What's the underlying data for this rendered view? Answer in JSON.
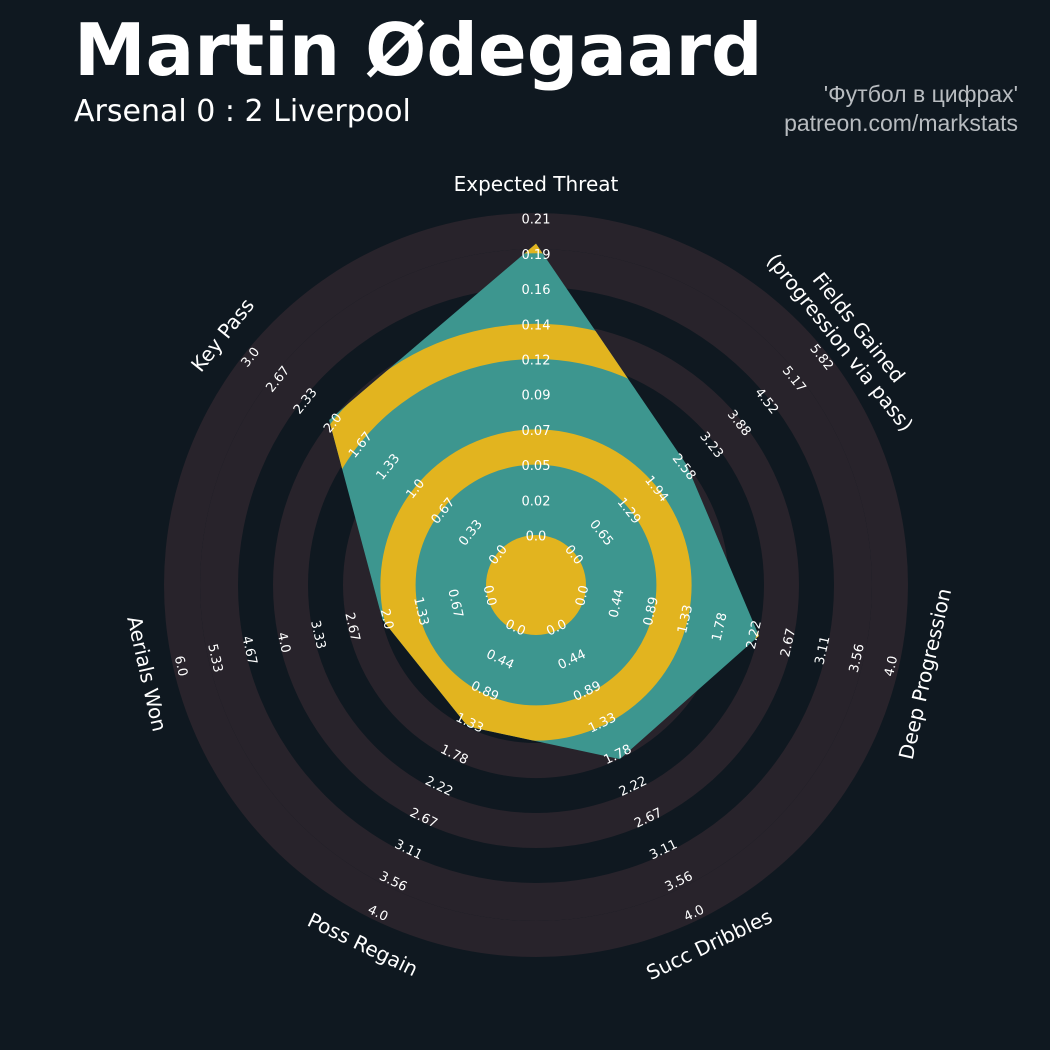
{
  "header": {
    "title": "Martin Ødegaard",
    "subtitle": "Arsenal 0 : 2 Liverpool",
    "credit_line1": "'Футбол в цифрах'",
    "credit_line2": "patreon.com/markstats"
  },
  "colors": {
    "background": "#0f1820",
    "ring_dark": "#28232b",
    "fill_teal": "#3d968f",
    "fill_gold": "#e2b41f",
    "text": "#ffffff"
  },
  "chart_data": {
    "type": "radar",
    "title": "Martin Ødegaard",
    "params": [
      {
        "name": "Expected Threat",
        "ticks": [
          "0.0",
          "0.02",
          "0.05",
          "0.07",
          "0.09",
          "0.12",
          "0.14",
          "0.16",
          "0.19",
          "0.21"
        ]
      },
      {
        "name": "Fields Gained\n(progression via pass)",
        "ticks": [
          "0.0",
          "0.65",
          "1.29",
          "1.94",
          "2.58",
          "3.23",
          "3.88",
          "4.52",
          "5.17",
          "5.82"
        ]
      },
      {
        "name": "Deep Progression",
        "ticks": [
          "0.0",
          "0.44",
          "0.89",
          "1.33",
          "1.78",
          "2.22",
          "2.67",
          "3.11",
          "3.56",
          "4.0"
        ]
      },
      {
        "name": "Succ Dribbles",
        "ticks": [
          "0.0",
          "0.44",
          "0.89",
          "1.33",
          "1.78",
          "2.22",
          "2.67",
          "3.11",
          "3.56",
          "4.0"
        ]
      },
      {
        "name": "Poss Regain",
        "ticks": [
          "0.0",
          "0.44",
          "0.89",
          "1.33",
          "1.78",
          "2.22",
          "2.67",
          "3.11",
          "3.56",
          "4.0"
        ]
      },
      {
        "name": "Aerials Won",
        "ticks": [
          "0.0",
          "0.67",
          "1.33",
          "2.0",
          "2.67",
          "3.33",
          "4.0",
          "4.67",
          "5.33",
          "6.0"
        ]
      },
      {
        "name": "Key Pass",
        "ticks": [
          "0.0",
          "0.33",
          "0.67",
          "1.0",
          "1.33",
          "1.67",
          "2.0",
          "2.33",
          "2.67",
          "3.0"
        ]
      }
    ],
    "values": [
      0.19,
      2.58,
      2.22,
      1.78,
      1.33,
      2.0,
      2.0
    ],
    "ranges": [
      [
        0,
        0.21
      ],
      [
        0,
        5.82
      ],
      [
        0,
        4.0
      ],
      [
        0,
        4.0
      ],
      [
        0,
        4.0
      ],
      [
        0,
        6.0
      ],
      [
        0,
        3.0
      ]
    ]
  }
}
